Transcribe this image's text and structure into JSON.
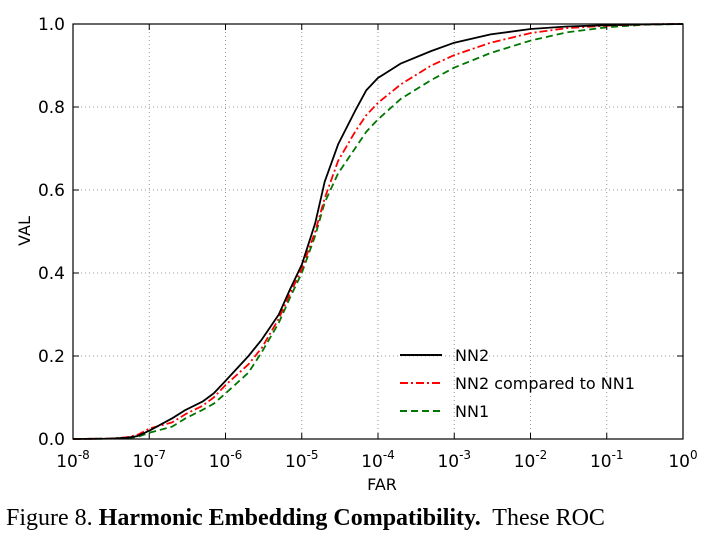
{
  "chart_data": {
    "type": "line",
    "xlabel": "FAR",
    "ylabel": "VAL",
    "x_scale": "log",
    "xlim": [
      1e-08,
      1
    ],
    "ylim": [
      0,
      1
    ],
    "grid": true,
    "legend_position": "lower-right",
    "x_ticks": [
      {
        "base": "10",
        "exp": "-8"
      },
      {
        "base": "10",
        "exp": "-7"
      },
      {
        "base": "10",
        "exp": "-6"
      },
      {
        "base": "10",
        "exp": "-5"
      },
      {
        "base": "10",
        "exp": "-4"
      },
      {
        "base": "10",
        "exp": "-3"
      },
      {
        "base": "10",
        "exp": "-2"
      },
      {
        "base": "10",
        "exp": "-1"
      },
      {
        "base": "10",
        "exp": "0"
      }
    ],
    "y_ticks": [
      "0.0",
      "0.2",
      "0.4",
      "0.6",
      "0.8",
      "1.0"
    ],
    "series": [
      {
        "name": "NN2",
        "color": "#000000",
        "style": "solid",
        "x": [
          1e-08,
          3e-08,
          5e-08,
          7e-08,
          1e-07,
          2e-07,
          3e-07,
          5e-07,
          7e-07,
          1e-06,
          2e-06,
          3e-06,
          5e-06,
          7e-06,
          1e-05,
          1.5e-05,
          2e-05,
          3e-05,
          5e-05,
          7e-05,
          0.0001,
          0.0002,
          0.0005,
          0.001,
          0.003,
          0.01,
          0.03,
          0.1,
          0.3,
          1
        ],
        "y": [
          0.0,
          0.001,
          0.003,
          0.007,
          0.02,
          0.05,
          0.07,
          0.09,
          0.11,
          0.14,
          0.2,
          0.24,
          0.3,
          0.36,
          0.42,
          0.52,
          0.62,
          0.71,
          0.79,
          0.84,
          0.87,
          0.905,
          0.935,
          0.955,
          0.975,
          0.988,
          0.994,
          0.997,
          0.999,
          1.0
        ]
      },
      {
        "name": "NN2 compared to NN1",
        "color": "#ff0000",
        "style": "dashdot",
        "x": [
          1e-08,
          3e-08,
          5e-08,
          7e-08,
          1e-07,
          2e-07,
          3e-07,
          5e-07,
          7e-07,
          1e-06,
          2e-06,
          3e-06,
          5e-06,
          7e-06,
          1e-05,
          1.5e-05,
          2e-05,
          3e-05,
          5e-05,
          7e-05,
          0.0001,
          0.0002,
          0.0005,
          0.001,
          0.003,
          0.01,
          0.03,
          0.1,
          0.3,
          1
        ],
        "y": [
          0.0,
          0.001,
          0.004,
          0.01,
          0.025,
          0.04,
          0.06,
          0.08,
          0.1,
          0.13,
          0.18,
          0.22,
          0.29,
          0.35,
          0.41,
          0.5,
          0.58,
          0.67,
          0.74,
          0.78,
          0.81,
          0.855,
          0.9,
          0.925,
          0.955,
          0.978,
          0.99,
          0.996,
          0.999,
          1.0
        ]
      },
      {
        "name": "NN1",
        "color": "#007700",
        "style": "dashed",
        "x": [
          1e-08,
          3e-08,
          5e-08,
          7e-08,
          1e-07,
          2e-07,
          3e-07,
          5e-07,
          7e-07,
          1e-06,
          2e-06,
          3e-06,
          5e-06,
          7e-06,
          1e-05,
          1.5e-05,
          2e-05,
          3e-05,
          5e-05,
          7e-05,
          0.0001,
          0.0002,
          0.0005,
          0.001,
          0.003,
          0.01,
          0.03,
          0.1,
          0.3,
          1
        ],
        "y": [
          0.0,
          0.001,
          0.002,
          0.005,
          0.015,
          0.03,
          0.05,
          0.07,
          0.085,
          0.11,
          0.16,
          0.21,
          0.28,
          0.34,
          0.4,
          0.49,
          0.57,
          0.64,
          0.7,
          0.74,
          0.77,
          0.82,
          0.865,
          0.895,
          0.93,
          0.96,
          0.98,
          0.992,
          0.998,
          1.0
        ]
      }
    ]
  },
  "caption": {
    "prefix": "Figure 8. ",
    "bold": "Harmonic Embedding Compatibility.",
    "suffix": "  These ROC"
  }
}
